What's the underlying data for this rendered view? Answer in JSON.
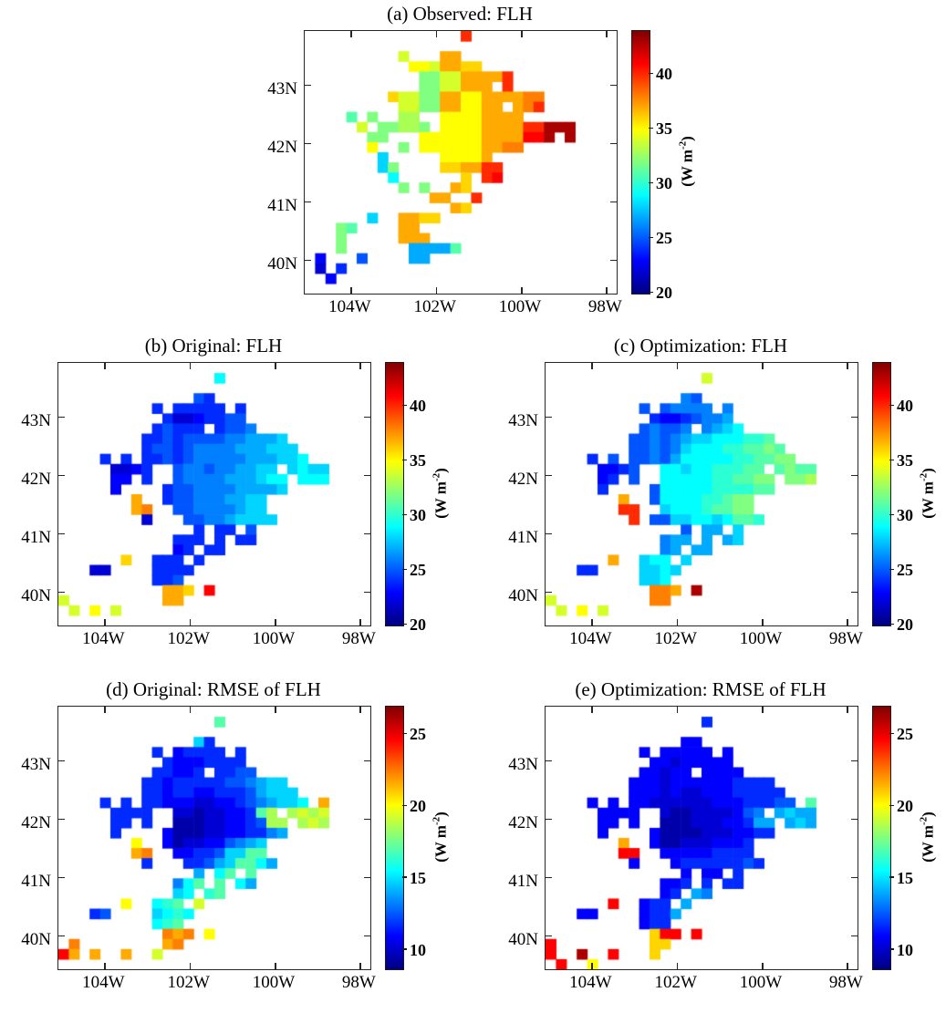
{
  "figure": {
    "background": "#ffffff",
    "text_color": "#000000",
    "colormap": "jet",
    "scale_chars": "0123456789ABCDEFGHIJKLMNO",
    "value_rule": "cell value = vmin + (charIndex/24)*(vmax-vmin); '.' means no data",
    "unit": {
      "pre": "(W m",
      "sup": "-2",
      "post": ")"
    }
  },
  "chart_data": [
    {
      "id": "a",
      "type": "heatmap",
      "title": "(a) Observed: FLH",
      "x_axis": {
        "tick_labels": [
          "104W",
          "102W",
          "100W",
          "98W"
        ],
        "tick_lons": [
          104,
          102,
          100,
          98
        ],
        "lon_range": [
          105.08,
          97.75
        ]
      },
      "y_axis": {
        "tick_labels": [
          "43N",
          "42N",
          "41N",
          "40N"
        ],
        "tick_lats": [
          43,
          42,
          41,
          40
        ],
        "lat_range": [
          43.92,
          39.42
        ]
      },
      "colorbar": {
        "vmin": 20,
        "vmax": 44,
        "ticks": [
          20,
          25,
          30,
          35,
          40
        ],
        "unit": "W m-2"
      },
      "grid": [
        "...............K..............",
        "..............................",
        ".........E...HH...............",
        "..........FFEHHGG.............",
        "...........CCEEHHHHK..........",
        "...........CCEEHHH.K..........",
        "........GEECCHHFFHHHHII.......",
        ".........EECCHHFFHH.HIK.......",
        "....B.C..DD..FFFFHHHH.........",
        ".....E.CCDDC.FFFFHHHHKKNNN....",
        "......CC...FFFFFFHHHHLLN.N....",
        "......F..C.FFFFFFHHII.........",
        ".......8.....FFFFH............",
        ".......8C....GGHHKK...........",
        "........9......G.KL...........",
        ".........C.C..HG..............",
        "............HH..K.............",
        "..............HG..............",
        "......8..HHGG.................",
        "...CB....HH...................",
        "...C.....HHH..................",
        "...C......7777B...............",
        ".3...5....77..................",
        ".2.4..........................",
        "..3...........................",
        ".............................."
      ]
    },
    {
      "id": "b",
      "type": "heatmap",
      "title": "(b) Original: FLH",
      "x_axis": {
        "tick_labels": [
          "104W",
          "102W",
          "100W",
          "98W"
        ],
        "tick_lons": [
          104,
          102,
          100,
          98
        ],
        "lon_range": [
          105.08,
          97.75
        ]
      },
      "y_axis": {
        "tick_labels": [
          "43N",
          "42N",
          "41N",
          "40N"
        ],
        "tick_lats": [
          43,
          42,
          41,
          40
        ],
        "lat_range": [
          43.92,
          39.42
        ]
      },
      "colorbar": {
        "vmin": 20,
        "vmax": 44,
        "ticks": [
          20,
          25,
          30,
          35,
          40
        ],
        "unit": "W m-2"
      },
      "grid": [
        "..............................",
        "...............9..............",
        "..............................",
        ".............54...............",
        ".........4.44444.4............",
        "..........42234455............",
        ".........45444.4556...........",
        "........44545555667778........",
        "........455456666777888.......",
        "....4.4.4454566666777889......",
        ".....2234..5665667788.8988....",
        ".....33.4..56666777899.999....",
        ".....3....455666677778........",
        ".......H..4556667788..........",
        ".......HI..556666788..........",
        "........2...556678888.........",
        ".............4.44.5...........",
        "...........444.4.44...........",
        "...........34.44..............",
        "......G..444.4................",
        "...22....4444.................",
        ".........445..................",
        "..........HHG.L...............",
        "E.........HH..................",
        ".E.F.E........................",
        ".............................."
      ]
    },
    {
      "id": "c",
      "type": "heatmap",
      "title": "(c) Optimization: FLH",
      "x_axis": {
        "tick_labels": [
          "104W",
          "102W",
          "100W",
          "98W"
        ],
        "tick_lons": [
          104,
          102,
          100,
          98
        ],
        "lon_range": [
          105.08,
          97.75
        ]
      },
      "y_axis": {
        "tick_labels": [
          "43N",
          "42N",
          "41N",
          "40N"
        ],
        "tick_lats": [
          43,
          42,
          41,
          40
        ],
        "lat_range": [
          43.92,
          39.42
        ]
      },
      "colorbar": {
        "vmin": 20,
        "vmax": 44,
        "ticks": [
          20,
          25,
          30,
          35,
          40
        ],
        "unit": "W m-2"
      },
      "grid": [
        "..............................",
        "...............E..............",
        "..............................",
        ".............65...............",
        ".........5.56666.6............",
        "..........43345667............",
        ".........56556.6789...........",
        "........55656788999AAB........",
        "........556568999AABBCB.......",
        "....4.5.5565799999AABBCC......",
        ".....3345..99899AAABB.BCBB....",
        ".....34.5..99999AABBCC.CCD....",
        ".....4....599999AAAABB........",
        ".......H..59999AABCC..........",
        ".......KK..8999ABBCC..........",
        "........K.55889989BBA.........",
        ".............5.77.8...........",
        "...........677.7.78...........",
        "...........67.77..............",
        "......H..899.8................",
        "...44....8898.................",
        ".........889..................",
        "..........IIH.N...............",
        "E.........II..................",
        ".E.F.E........................",
        ".............................."
      ]
    },
    {
      "id": "d",
      "type": "heatmap",
      "title": "(d) Original: RMSE of FLH",
      "x_axis": {
        "tick_labels": [
          "104W",
          "102W",
          "100W",
          "98W"
        ],
        "tick_lons": [
          104,
          102,
          100,
          98
        ],
        "lon_range": [
          105.08,
          97.75
        ]
      },
      "y_axis": {
        "tick_labels": [
          "43N",
          "42N",
          "41N",
          "40N"
        ],
        "tick_lats": [
          43,
          42,
          41,
          40
        ],
        "lat_range": [
          43.92,
          39.42
        ]
      },
      "colorbar": {
        "vmin": 8.7,
        "vmax": 27,
        "ticks": [
          10,
          15,
          20,
          25
        ],
        "unit": "W m-2"
      },
      "grid": [
        "..............................",
        "...............B..............",
        "..............................",
        ".............84...............",
        ".........4.34444.4............",
        "..........43334444............",
        ".........44334.4455...........",
        "........44344444556788........",
        "........443443344457888.......",
        "....4.4.4433322334567889.H....",
        ".....4444..22122334BD.DEDE....",
        ".....44.4..111223345DD.DED....",
        ".....4....311122334467........",
        ".......F..3122335678..........",
        ".......HI..3344588BB..........",
        "........4...44578BB97.........",
        ".............7.9B.B...........",
        "...........69B.B.97...........",
        "...........89.AB..............",
        "......F..9AB.E................",
        "...45....89A9.................",
        ".........9AB..................",
        "..........IHI.F...............",
        ".I........HI..................",
        "LH.H..H..E....................",
        ".............................."
      ]
    },
    {
      "id": "e",
      "type": "heatmap",
      "title": "(e) Optimization: RMSE of FLH",
      "x_axis": {
        "tick_labels": [
          "104W",
          "102W",
          "100W",
          "98W"
        ],
        "tick_lons": [
          104,
          102,
          100,
          98
        ],
        "lon_range": [
          105.08,
          97.75
        ]
      },
      "y_axis": {
        "tick_labels": [
          "43N",
          "42N",
          "41N",
          "40N"
        ],
        "tick_lats": [
          43,
          42,
          41,
          40
        ],
        "lat_range": [
          43.92,
          39.42
        ]
      },
      "colorbar": {
        "vmin": 8.7,
        "vmax": 27,
        "ticks": [
          10,
          15,
          20,
          25
        ],
        "unit": "W m-2"
      },
      "grid": [
        "..............................",
        "...............4..............",
        "..............................",
        ".............33...............",
        ".........3.33333.3............",
        "..........33233333............",
        ".........33233.3333...........",
        "........33323333334444........",
        "........333232233344444.......",
        "....3.3.3322222233344455.B....",
        ".....3333..2112222356.7877....",
        ".....33.3..11122233477.787....",
        ".....3....311112223344........",
        ".......H..3112223334..........",
        ".......LL..333334444..........",
        "........3...344444454.........",
        ".............3.33.4...........",
        "...........334.4.44...........",
        "...........34.76..............",
        "......L..344.7................",
        "...33....3447.................",
        ".........344..................",
        "..........GLL.L...............",
        "L.........GG..................",
        "L..N..L...G...................",
        ".L..F........................."
      ]
    }
  ],
  "layout_positions": {
    "note": "panel letters a-e arranged 1 top-center, 2 middle, 2 bottom"
  }
}
